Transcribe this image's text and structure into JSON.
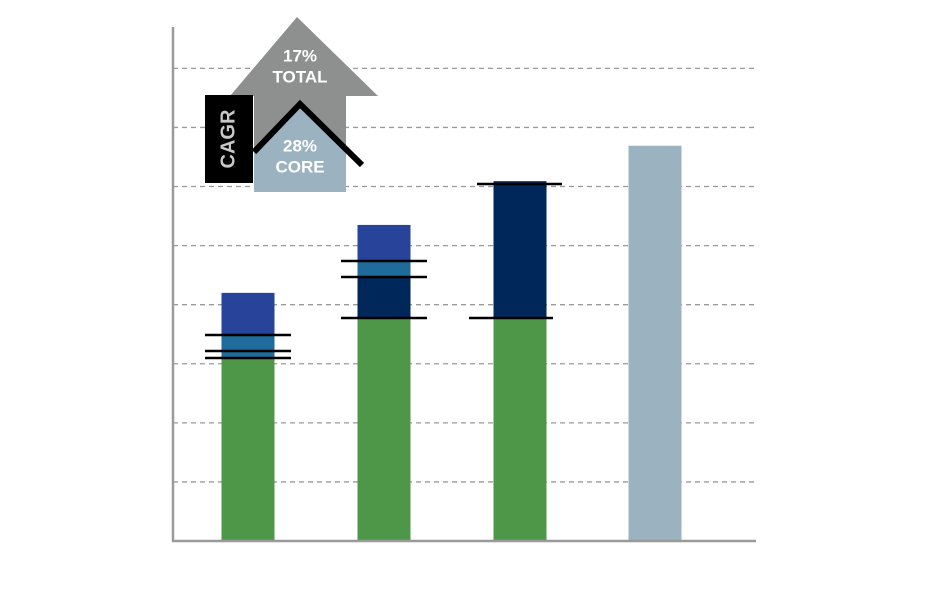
{
  "chart_data": {
    "type": "bar",
    "stacked": true,
    "categories": [
      null,
      null,
      null,
      null
    ],
    "series": [
      {
        "color": "#4f9748",
        "values": [
          3.07,
          3.78,
          3.78,
          0
        ]
      },
      {
        "color": "#00275a",
        "values": [
          0,
          0.69,
          2.31,
          0
        ]
      },
      {
        "color": "#1f6b9b",
        "values": [
          0.42,
          0.27,
          0,
          0
        ]
      },
      {
        "color": "#27439a",
        "values": [
          0.71,
          0.61,
          0,
          0
        ]
      },
      {
        "color": "#9bb3c1",
        "values": [
          0,
          0,
          0,
          6.69
        ]
      }
    ],
    "ylim": [
      0,
      8.7
    ],
    "yticks": [
      1,
      2,
      3,
      4,
      5,
      6,
      7,
      8
    ],
    "grid": true,
    "annotations": {
      "total_pct": "17%",
      "total": "TOTAL",
      "core_pct": "28%",
      "core": "CORE",
      "cagr": "CAGR"
    }
  }
}
